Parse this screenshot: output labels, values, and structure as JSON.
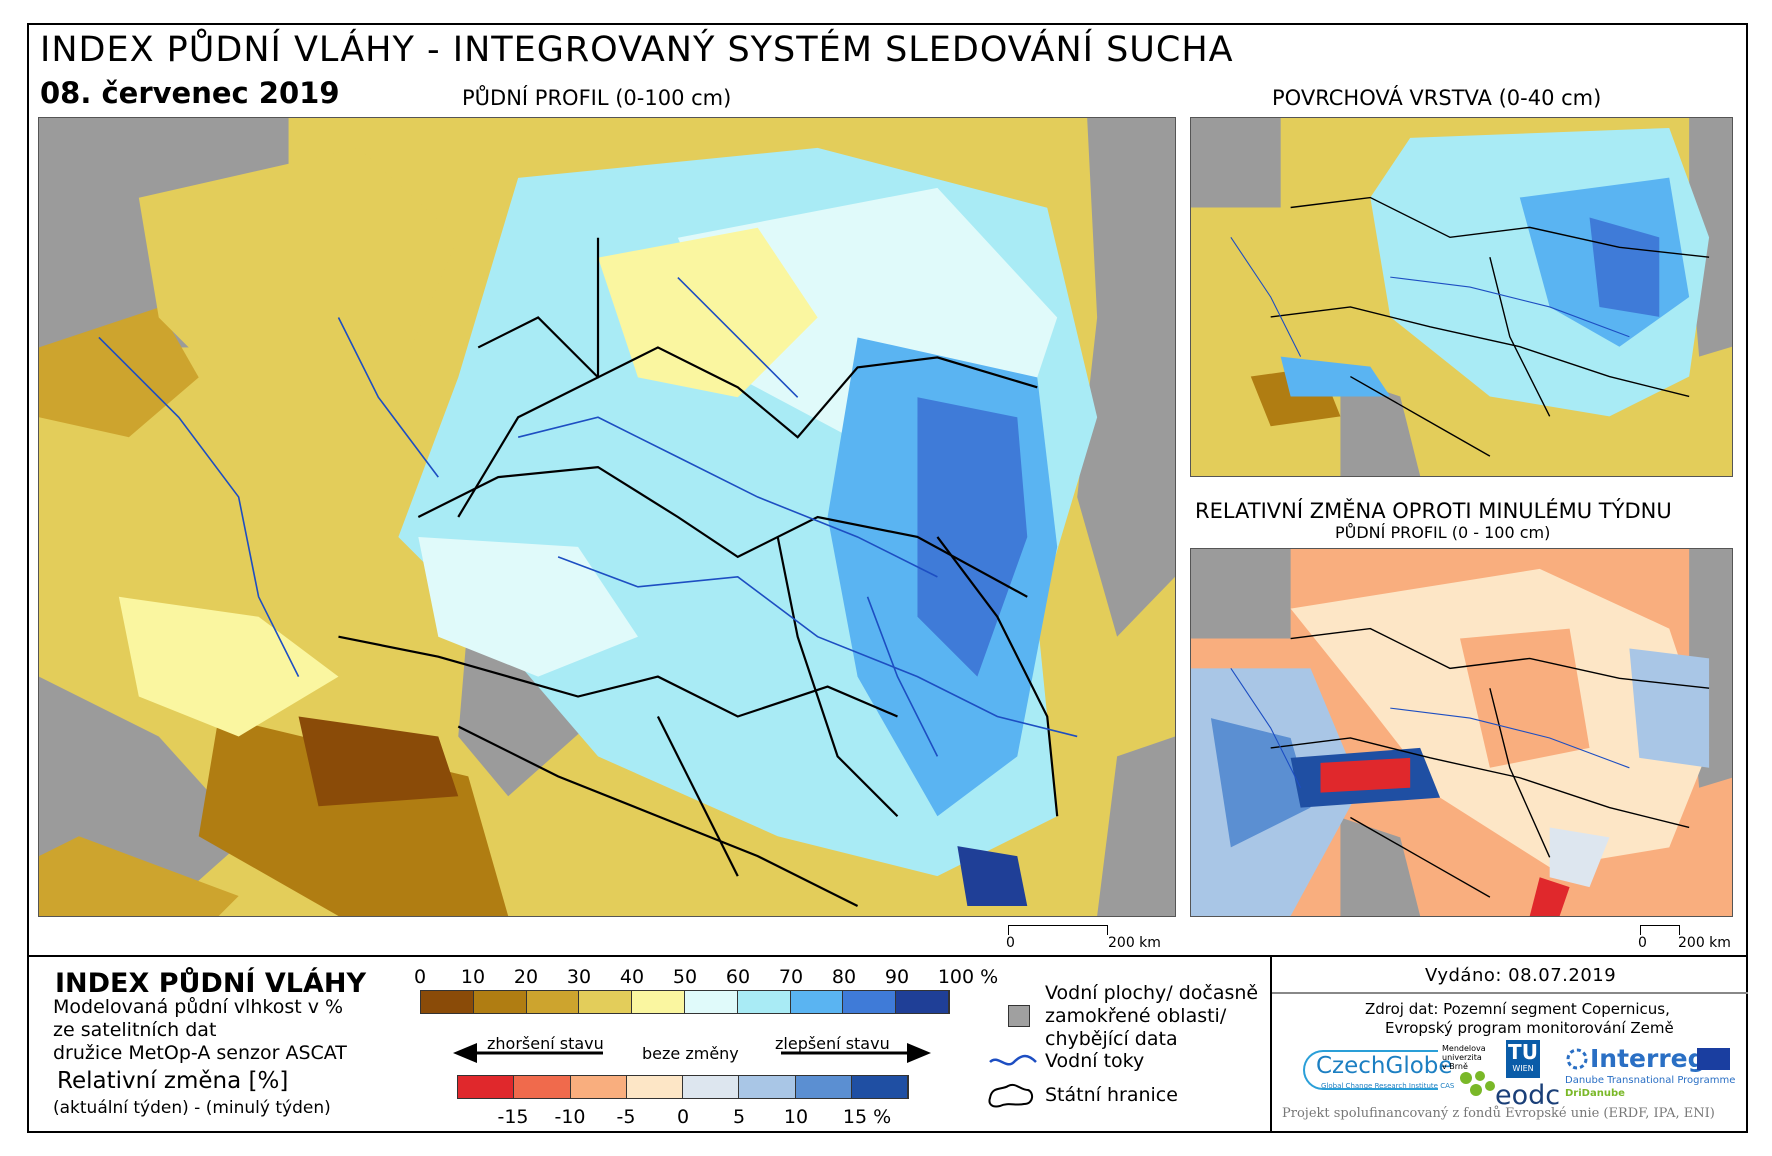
{
  "header": {
    "title": "INDEX PŮDNÍ VLÁHY - INTEGROVANÝ SYSTÉM SLEDOVÁNÍ SUCHA",
    "date": "08. červenec 2019"
  },
  "maps": {
    "main_label": "PŮDNÍ PROFIL (0-100 cm)",
    "surface_label": "POVRCHOVÁ VRSTVA (0-40 cm)",
    "change_label": "RELATIVNÍ ZMĚNA OPROTI MINULÉMU TÝDNU",
    "change_sublabel": "PŮDNÍ PROFIL (0 - 100 cm)",
    "scale_main": {
      "zero": "0",
      "end": "200 km"
    },
    "scale_small": {
      "zero": "0",
      "end": "200 km"
    }
  },
  "legend": {
    "heading": "INDEX PŮDNÍ VLÁHY",
    "desc_line1": "Modelovaná půdní vlhkost v %",
    "desc_line2": "ze satelitních dat",
    "desc_line3": "družice MetOp-A senzor ASCAT",
    "change_heading": "Relativní změna [%]",
    "change_desc": "(aktuální týden) - (minulý týden)",
    "index_ticks": [
      "0",
      "10",
      "20",
      "30",
      "40",
      "50",
      "60",
      "70",
      "80",
      "90",
      "100 %"
    ],
    "index_colors": [
      "#8a4b08",
      "#b07d12",
      "#cda42e",
      "#e3cd5a",
      "#faf6a0",
      "#e0fafa",
      "#a9ebf5",
      "#5ab4f2",
      "#3f7bd8",
      "#1f3f97"
    ],
    "worse_label": "zhoršení stavu",
    "nochange_label": "beze změny",
    "better_label": "zlepšení stavu",
    "change_ticks": [
      "-15",
      "-10",
      "-5",
      "0",
      "5",
      "10",
      "15 %"
    ],
    "change_colors": [
      "#e0282c",
      "#f06a4c",
      "#f9ae7e",
      "#fde6c6",
      "#dde6ef",
      "#a9c6e6",
      "#5b8fd2",
      "#1f4fa3"
    ],
    "water_label_1": "Vodní plochy/ dočasně",
    "water_label_2": "zamokřené oblasti/",
    "water_label_3": "chybějící data",
    "rivers_label": "Vodní toky",
    "borders_label": "Státní hranice"
  },
  "info": {
    "issued": "Vydáno: 08.07.2019",
    "source_line1": "Zdroj dat: Pozemní segment Copernicus,",
    "source_line2": "Evropský program monitorování Země",
    "footer": "Projekt spolufinancovaný z fondů Evropské unie (ERDF, IPA, ENI)"
  },
  "logos": {
    "czechglobe": "CzechGlobe",
    "czechglobe_sub": "Global Change Research Institute CAS",
    "mendel_1": "Mendelova",
    "mendel_2": "univerzita",
    "mendel_3": "v Brně",
    "tu_1": "TU",
    "tu_2": "WIEN",
    "eodc": "eodc",
    "interreg": "Interreg",
    "interreg_sub1": "Danube Transnational Programme",
    "interreg_sub2": "DriDanube"
  }
}
